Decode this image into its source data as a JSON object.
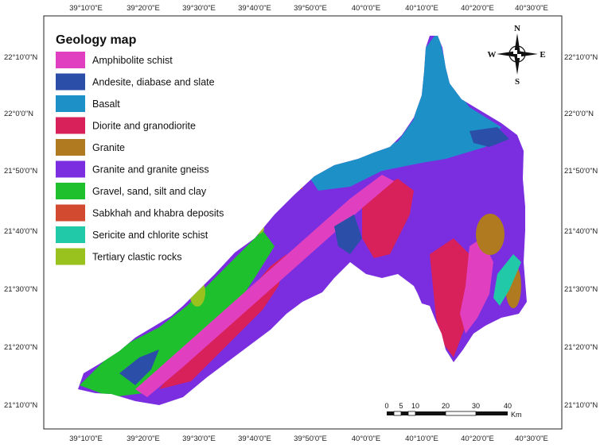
{
  "map": {
    "title": "Geology map",
    "legend": [
      {
        "label": "Amphibolite schist",
        "color": "#e040c0"
      },
      {
        "label": "Andesite, diabase and slate",
        "color": "#2b4ea8"
      },
      {
        "label": "Basalt",
        "color": "#1e90c8"
      },
      {
        "label": "Diorite and granodiorite",
        "color": "#d8205a"
      },
      {
        "label": "Granite",
        "color": "#b07a20"
      },
      {
        "label": "Granite and granite gneiss",
        "color": "#7a2ee0"
      },
      {
        "label": "Gravel, sand, silt and clay",
        "color": "#1fc02e"
      },
      {
        "label": "Sabkhah and khabra deposits",
        "color": "#d24a30"
      },
      {
        "label": "Sericite and chlorite schist",
        "color": "#22c9a8"
      },
      {
        "label": "Tertiary clastic rocks",
        "color": "#99c21e"
      }
    ],
    "lon_ticks": [
      "39°10'0\"E",
      "39°20'0\"E",
      "39°30'0\"E",
      "39°40'0\"E",
      "39°50'0\"E",
      "40°0'0\"E",
      "40°10'0\"E",
      "40°20'0\"E",
      "40°30'0\"E"
    ],
    "lat_ticks": [
      "22°10'0\"N",
      "22°0'0\"N",
      "21°50'0\"N",
      "21°40'0\"N",
      "21°30'0\"N",
      "21°20'0\"N",
      "21°10'0\"N"
    ],
    "compass": {
      "n": "N",
      "s": "S",
      "e": "E",
      "w": "W"
    },
    "scale_bar": {
      "labels": [
        "0",
        "5",
        "10",
        "20",
        "30",
        "40"
      ],
      "unit": "Km"
    }
  }
}
